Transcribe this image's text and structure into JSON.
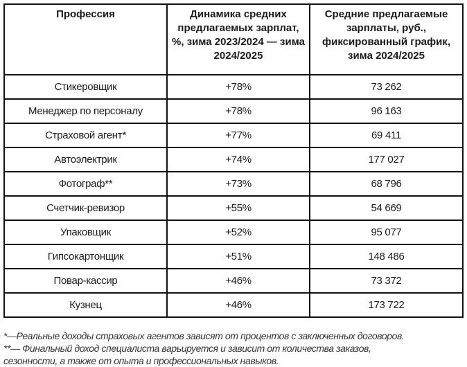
{
  "table": {
    "headers": [
      "Профессия",
      "Динамика средних предлагаемых зарплат, %, зима 2023/2024 — зима 2024/2025",
      "Средние предлагаемые зарплаты, руб., фиксированный график, зима 2024/2025"
    ],
    "rows": [
      {
        "profession": "Стикеровщик",
        "change": "+78%",
        "salary": "73 262"
      },
      {
        "profession": "Менеджер по персоналу",
        "change": "+78%",
        "salary": "96 163"
      },
      {
        "profession": "Страховой агент*",
        "change": "+77%",
        "salary": "69 411"
      },
      {
        "profession": "Автоэлектрик",
        "change": "+74%",
        "salary": "177 027"
      },
      {
        "profession": "Фотограф**",
        "change": "+73%",
        "salary": "68 796"
      },
      {
        "profession": "Счетчик-ревизор",
        "change": "+55%",
        "salary": "54 669"
      },
      {
        "profession": "Упаковщик",
        "change": "+52%",
        "salary": "95 077"
      },
      {
        "profession": "Гипсокартонщик",
        "change": "+51%",
        "salary": "148 486"
      },
      {
        "profession": "Повар-кассир",
        "change": "+46%",
        "salary": "73 372"
      },
      {
        "profession": "Кузнец",
        "change": "+46%",
        "salary": "173 722"
      }
    ]
  },
  "footnotes": [
    "*—Реальные доходы страховых агентов зависят от процентов с заключенных договоров.",
    "**— Финальный доход специалиста варьируется и зависит от количества заказов,",
    "сезонности, а также от опыта и профессиональных навыков."
  ]
}
